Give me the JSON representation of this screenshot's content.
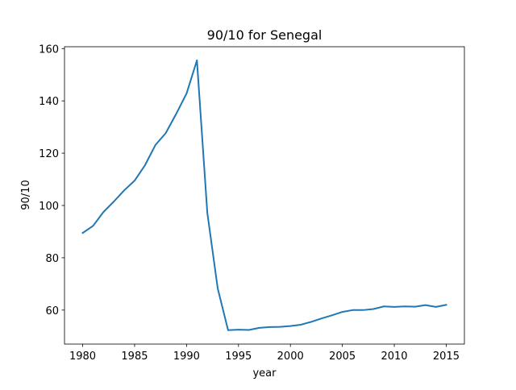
{
  "chart_data": {
    "type": "line",
    "title": "90/10 for Senegal",
    "x_label": "year",
    "y_label": "90/10",
    "x": [
      1980,
      1981,
      1982,
      1983,
      1984,
      1985,
      1986,
      1987,
      1988,
      1989,
      1990,
      1991,
      1992,
      1993,
      1994,
      1995,
      1996,
      1997,
      1998,
      1999,
      2000,
      2001,
      2002,
      2003,
      2004,
      2005,
      2006,
      2007,
      2008,
      2009,
      2010,
      2011,
      2012,
      2013,
      2014,
      2015
    ],
    "series": [
      {
        "name": "90/10",
        "color": "#1f77b4",
        "values": [
          89.5,
          92.2,
          97.5,
          101.5,
          105.8,
          109.5,
          115.4,
          123.1,
          127.7,
          135,
          142.8,
          155.5,
          97.2,
          68.3,
          52.3,
          52.5,
          52.4,
          53.2,
          53.5,
          53.6,
          53.9,
          54.4,
          55.5,
          56.8,
          58,
          59.3,
          60,
          60,
          60.4,
          61.4,
          61.2,
          61.4,
          61.3,
          61.9,
          61.2,
          62
        ]
      }
    ],
    "xlim": [
      1978.25,
      2016.75
    ],
    "xticks": [
      1980,
      1985,
      1990,
      1995,
      2000,
      2005,
      2010,
      2015
    ],
    "ylim": [
      47.0,
      160.7
    ],
    "yticks": [
      60,
      80,
      100,
      120,
      140,
      160
    ],
    "grid": false
  }
}
